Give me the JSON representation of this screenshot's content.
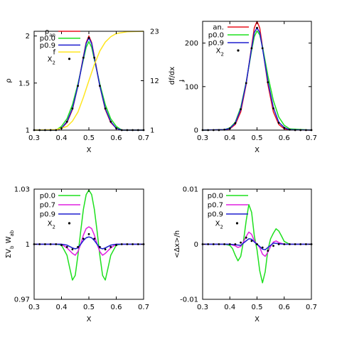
{
  "chart_data": [
    {
      "type": "line",
      "panel": "top-left",
      "xlabel": "X",
      "ylabel": "ρ",
      "y2label": "f",
      "xlim": [
        0.3,
        0.7
      ],
      "ylim": [
        1,
        2.05
      ],
      "y2lim": [
        1,
        23
      ],
      "xticks": [
        "0.3",
        "0.4",
        "0.5",
        "0.6",
        "0.7"
      ],
      "xtick_values": [
        0.3,
        0.4,
        0.5,
        0.6,
        0.7
      ],
      "yticks": [
        "1",
        "1.5",
        "2"
      ],
      "ytick_values": [
        1,
        1.5,
        2
      ],
      "y2ticks": [
        "1",
        "12",
        "23"
      ],
      "y2tick_values": [
        1,
        12,
        23
      ],
      "legend_position": "top-left",
      "series": [
        {
          "name": "ρ_an",
          "label_main": "ρ",
          "label_sub": "an",
          "color": "#e8141e",
          "x": [
            0.3,
            0.38,
            0.4,
            0.42,
            0.44,
            0.46,
            0.48,
            0.49,
            0.5,
            0.51,
            0.52,
            0.54,
            0.56,
            0.58,
            0.6,
            0.62,
            0.7
          ],
          "y": [
            1.0,
            1.0,
            1.02,
            1.08,
            1.22,
            1.47,
            1.78,
            1.93,
            2.0,
            1.93,
            1.78,
            1.47,
            1.22,
            1.08,
            1.02,
            1.0,
            1.0
          ]
        },
        {
          "name": "p0.0",
          "color": "#1ee01e",
          "x": [
            0.3,
            0.38,
            0.4,
            0.42,
            0.44,
            0.46,
            0.48,
            0.49,
            0.5,
            0.51,
            0.52,
            0.54,
            0.56,
            0.58,
            0.6,
            0.62,
            0.7
          ],
          "y": [
            1.0,
            1.0,
            1.04,
            1.12,
            1.27,
            1.49,
            1.75,
            1.88,
            1.94,
            1.88,
            1.75,
            1.49,
            1.27,
            1.12,
            1.04,
            1.0,
            1.0
          ]
        },
        {
          "name": "p0.9",
          "color": "#1e1ecf",
          "x": [
            0.3,
            0.38,
            0.4,
            0.42,
            0.44,
            0.46,
            0.48,
            0.49,
            0.5,
            0.51,
            0.52,
            0.54,
            0.56,
            0.58,
            0.6,
            0.62,
            0.7
          ],
          "y": [
            1.0,
            1.0,
            1.02,
            1.09,
            1.23,
            1.47,
            1.77,
            1.92,
            1.98,
            1.92,
            1.77,
            1.47,
            1.23,
            1.09,
            1.02,
            1.0,
            1.0
          ]
        },
        {
          "name": "f",
          "color": "#ffe620",
          "axis": "y2",
          "x": [
            0.3,
            0.38,
            0.42,
            0.44,
            0.46,
            0.48,
            0.5,
            0.52,
            0.54,
            0.56,
            0.58,
            0.6,
            0.64,
            0.7
          ],
          "y": [
            1.0,
            1.1,
            1.8,
            3.0,
            5.0,
            8.3,
            12.0,
            15.6,
            18.6,
            20.6,
            21.8,
            22.5,
            22.9,
            23.0
          ]
        },
        {
          "name": "X_2",
          "label_main": "X",
          "label_sub": "2",
          "color": "#000000",
          "style": "dots",
          "x": [
            0.3,
            0.32,
            0.34,
            0.36,
            0.38,
            0.4,
            0.42,
            0.44,
            0.46,
            0.48,
            0.5,
            0.52,
            0.54,
            0.56,
            0.58,
            0.6,
            0.62,
            0.64,
            0.66,
            0.68,
            0.7
          ],
          "y": [
            1.0,
            1.0,
            1.0,
            1.0,
            1.0,
            1.02,
            1.09,
            1.23,
            1.47,
            1.77,
            1.98,
            1.77,
            1.47,
            1.23,
            1.09,
            1.02,
            1.0,
            1.0,
            1.0,
            1.0,
            1.0
          ]
        }
      ]
    },
    {
      "type": "line",
      "panel": "top-right",
      "xlabel": "X",
      "ylabel": "df/dx",
      "xlim": [
        0.3,
        0.7
      ],
      "ylim": [
        0,
        250
      ],
      "xticks": [
        "0.3",
        "0.4",
        "0.5",
        "0.6",
        "0.7"
      ],
      "xtick_values": [
        0.3,
        0.4,
        0.5,
        0.6,
        0.7
      ],
      "yticks": [
        "0",
        "100",
        "200"
      ],
      "ytick_values": [
        0,
        100,
        200
      ],
      "legend_position": "top-right",
      "series": [
        {
          "name": "an.",
          "color": "#e8141e",
          "x": [
            0.3,
            0.38,
            0.4,
            0.42,
            0.44,
            0.46,
            0.48,
            0.49,
            0.5,
            0.51,
            0.52,
            0.54,
            0.56,
            0.58,
            0.6,
            0.62,
            0.7
          ],
          "y": [
            0,
            1,
            3,
            13,
            42,
            105,
            192,
            235,
            250,
            235,
            192,
            105,
            42,
            13,
            3,
            1,
            0
          ]
        },
        {
          "name": "p0.0",
          "color": "#1ee01e",
          "x": [
            0.3,
            0.38,
            0.4,
            0.42,
            0.44,
            0.46,
            0.48,
            0.49,
            0.5,
            0.51,
            0.52,
            0.54,
            0.56,
            0.58,
            0.6,
            0.62,
            0.7
          ],
          "y": [
            0,
            1,
            5,
            18,
            52,
            110,
            183,
            215,
            228,
            219,
            192,
            125,
            68,
            30,
            11,
            3,
            0
          ]
        },
        {
          "name": "p0.9",
          "color": "#1e1ecf",
          "x": [
            0.3,
            0.38,
            0.4,
            0.42,
            0.44,
            0.46,
            0.48,
            0.49,
            0.5,
            0.51,
            0.52,
            0.54,
            0.56,
            0.58,
            0.6,
            0.62,
            0.7
          ],
          "y": [
            0,
            1,
            4,
            16,
            48,
            108,
            188,
            224,
            235,
            224,
            188,
            112,
            52,
            18,
            6,
            1,
            0
          ]
        },
        {
          "name": "X_2",
          "label_main": "X",
          "label_sub": "2",
          "color": "#000000",
          "style": "dots",
          "x": [
            0.3,
            0.32,
            0.34,
            0.36,
            0.38,
            0.4,
            0.42,
            0.44,
            0.46,
            0.48,
            0.5,
            0.52,
            0.54,
            0.56,
            0.58,
            0.6,
            0.62,
            0.64,
            0.66,
            0.68,
            0.7
          ],
          "y": [
            0,
            0,
            0,
            0,
            1,
            4,
            16,
            48,
            108,
            188,
            235,
            188,
            110,
            50,
            17,
            5,
            1,
            0,
            0,
            0,
            0
          ]
        }
      ]
    },
    {
      "type": "line",
      "panel": "bottom-left",
      "xlabel": "X",
      "ylabel": "ΣV_b W_ab",
      "ylabel_main": "ΣV",
      "ylabel_sub1": "b",
      "ylabel_mid": " W",
      "ylabel_sub2": "ab",
      "xlim": [
        0.3,
        0.7
      ],
      "ylim": [
        0.97,
        1.03
      ],
      "xticks": [
        "0.3",
        "0.4",
        "0.5",
        "0.6",
        "0.7"
      ],
      "xtick_values": [
        0.3,
        0.4,
        0.5,
        0.6,
        0.7
      ],
      "yticks": [
        "0.97",
        "1",
        "1.03"
      ],
      "ytick_values": [
        0.97,
        1.0,
        1.03
      ],
      "legend_position": "top-left",
      "series": [
        {
          "name": "p0.0",
          "color": "#1ee01e",
          "x": [
            0.3,
            0.38,
            0.4,
            0.42,
            0.43,
            0.44,
            0.45,
            0.46,
            0.47,
            0.48,
            0.49,
            0.5,
            0.51,
            0.52,
            0.53,
            0.54,
            0.55,
            0.56,
            0.57,
            0.58,
            0.6,
            0.62,
            0.7
          ],
          "y": [
            1.0,
            1.0,
            0.9995,
            0.994,
            0.987,
            0.9805,
            0.983,
            0.994,
            1.007,
            1.019,
            1.027,
            1.0295,
            1.027,
            1.019,
            1.007,
            0.994,
            0.983,
            0.9805,
            0.987,
            0.994,
            0.9995,
            1.0,
            1.0
          ]
        },
        {
          "name": "p0.7",
          "color": "#e020e0",
          "x": [
            0.3,
            0.38,
            0.4,
            0.42,
            0.44,
            0.45,
            0.46,
            0.47,
            0.48,
            0.49,
            0.5,
            0.51,
            0.52,
            0.53,
            0.54,
            0.55,
            0.56,
            0.58,
            0.6,
            0.62,
            0.7
          ],
          "y": [
            1.0,
            1.0,
            1.0,
            0.998,
            0.995,
            0.994,
            0.996,
            1.0,
            1.005,
            1.0085,
            1.0095,
            1.0085,
            1.005,
            1.0,
            0.996,
            0.994,
            0.995,
            0.998,
            1.0,
            1.0,
            1.0
          ]
        },
        {
          "name": "p0.9",
          "color": "#1e1ecf",
          "x": [
            0.3,
            0.38,
            0.4,
            0.42,
            0.44,
            0.45,
            0.46,
            0.47,
            0.48,
            0.49,
            0.5,
            0.51,
            0.52,
            0.53,
            0.54,
            0.55,
            0.56,
            0.58,
            0.6,
            0.62,
            0.7
          ],
          "y": [
            1.0,
            1.0,
            1.0,
            0.9995,
            0.998,
            0.9975,
            0.998,
            1.0,
            1.002,
            1.0035,
            1.004,
            1.0035,
            1.002,
            1.0,
            0.998,
            0.9975,
            0.998,
            0.9995,
            1.0,
            1.0,
            1.0
          ]
        },
        {
          "name": "X_2",
          "label_main": "X",
          "label_sub": "2",
          "color": "#000000",
          "style": "dots",
          "x": [
            0.3,
            0.32,
            0.34,
            0.36,
            0.38,
            0.4,
            0.42,
            0.44,
            0.46,
            0.48,
            0.5,
            0.52,
            0.54,
            0.56,
            0.58,
            0.6,
            0.62,
            0.64,
            0.66,
            0.68,
            0.7
          ],
          "y": [
            1.0,
            1.0,
            1.0,
            1.0,
            1.0,
            0.9995,
            0.9985,
            0.9972,
            0.9985,
            1.003,
            1.0055,
            1.003,
            0.9985,
            0.9972,
            0.9985,
            0.9995,
            1.0,
            1.0,
            1.0,
            1.0,
            1.0
          ]
        }
      ]
    },
    {
      "type": "line",
      "panel": "bottom-right",
      "xlabel": "X",
      "ylabel": "<Δx>/h",
      "xlim": [
        0.3,
        0.7
      ],
      "ylim": [
        -0.01,
        0.01
      ],
      "xticks": [
        "0.3",
        "0.4",
        "0.5",
        "0.6",
        "0.7"
      ],
      "xtick_values": [
        0.3,
        0.4,
        0.5,
        0.6,
        0.7
      ],
      "yticks": [
        "-0.01",
        "0",
        "0.01"
      ],
      "ytick_values": [
        -0.01,
        0.0,
        0.01
      ],
      "legend_position": "top-left",
      "series": [
        {
          "name": "p0.0",
          "color": "#1ee01e",
          "x": [
            0.3,
            0.38,
            0.4,
            0.41,
            0.42,
            0.43,
            0.44,
            0.45,
            0.46,
            0.47,
            0.48,
            0.49,
            0.5,
            0.51,
            0.52,
            0.53,
            0.54,
            0.55,
            0.56,
            0.57,
            0.58,
            0.59,
            0.6,
            0.62,
            0.7
          ],
          "y": [
            0.0,
            0.0,
            -0.0002,
            -0.0008,
            -0.002,
            -0.003,
            -0.0022,
            0.0005,
            0.0042,
            0.0072,
            0.0058,
            0.0015,
            -0.001,
            -0.0048,
            -0.007,
            -0.005,
            -0.001,
            0.001,
            0.002,
            0.0028,
            0.0024,
            0.0015,
            0.0005,
            0.0,
            0.0
          ]
        },
        {
          "name": "p0.7",
          "color": "#e020e0",
          "x": [
            0.3,
            0.38,
            0.4,
            0.42,
            0.43,
            0.44,
            0.45,
            0.46,
            0.47,
            0.48,
            0.49,
            0.5,
            0.51,
            0.52,
            0.53,
            0.54,
            0.55,
            0.56,
            0.57,
            0.58,
            0.6,
            0.62,
            0.7
          ],
          "y": [
            0.0,
            0.0,
            0.0,
            -0.0003,
            -0.0006,
            -0.0004,
            0.0004,
            0.0014,
            0.0022,
            0.0018,
            0.0006,
            0.0,
            -0.0006,
            -0.0018,
            -0.0022,
            -0.0014,
            -0.0004,
            0.0004,
            0.0006,
            0.0003,
            0.0,
            0.0,
            0.0
          ]
        },
        {
          "name": "p0.9",
          "color": "#1e1ecf",
          "x": [
            0.3,
            0.38,
            0.4,
            0.42,
            0.44,
            0.45,
            0.46,
            0.47,
            0.48,
            0.49,
            0.5,
            0.51,
            0.52,
            0.53,
            0.54,
            0.55,
            0.56,
            0.58,
            0.6,
            0.62,
            0.7
          ],
          "y": [
            0.0,
            0.0,
            0.0,
            -0.0001,
            -0.0002,
            0.0002,
            0.0006,
            0.001,
            0.0009,
            0.0004,
            0.0,
            -0.0004,
            -0.0009,
            -0.001,
            -0.0006,
            -0.0002,
            0.0002,
            0.0001,
            0.0,
            0.0,
            0.0
          ]
        },
        {
          "name": "X_2",
          "label_main": "X",
          "label_sub": "2",
          "color": "#000000",
          "style": "dots",
          "x": [
            0.3,
            0.32,
            0.34,
            0.36,
            0.38,
            0.4,
            0.42,
            0.44,
            0.46,
            0.48,
            0.5,
            0.52,
            0.54,
            0.56,
            0.58,
            0.6,
            0.62,
            0.64,
            0.66,
            0.68,
            0.7
          ],
          "y": [
            0.0,
            0.0,
            0.0,
            0.0,
            0.0,
            0.0,
            0.0,
            0.0003,
            0.0012,
            0.0006,
            0.0,
            -0.0006,
            -0.0012,
            -0.0003,
            0.0,
            0.0,
            0.0,
            0.0,
            0.0,
            0.0,
            0.0
          ]
        }
      ]
    }
  ]
}
